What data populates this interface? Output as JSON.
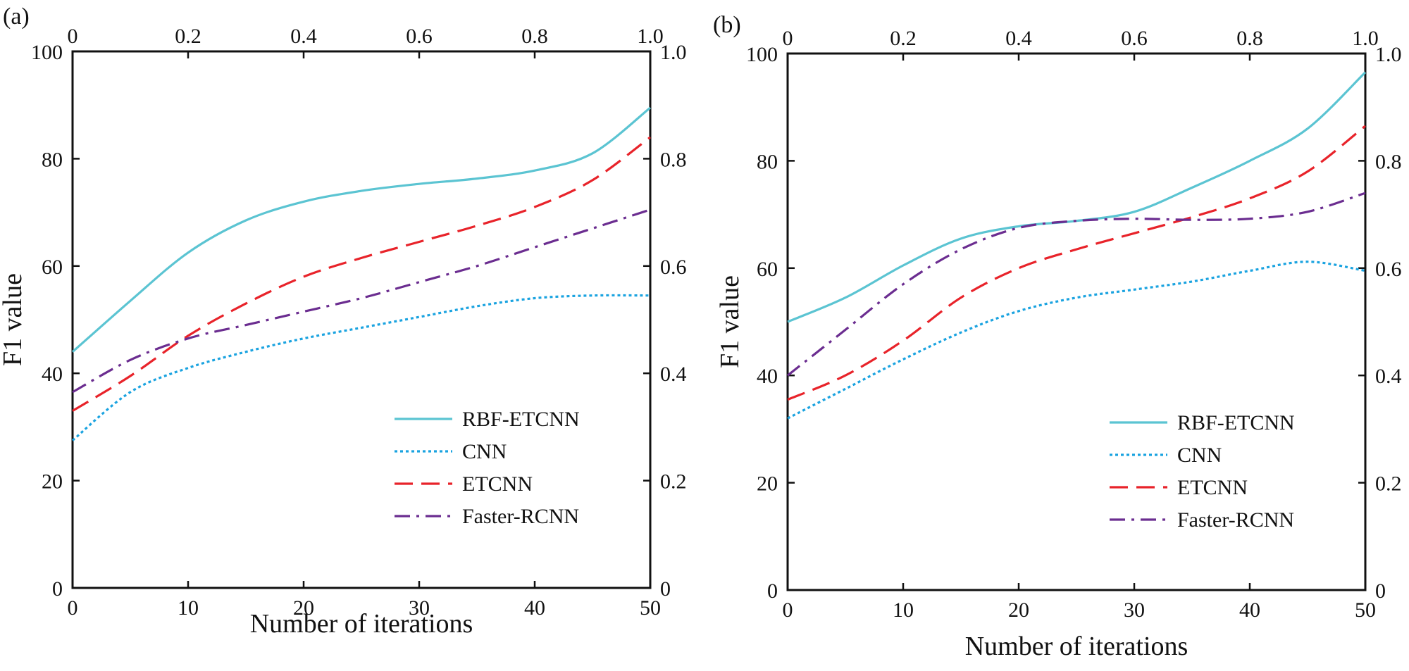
{
  "figure": {
    "panels": [
      "(a)",
      "(b)"
    ]
  },
  "chart_data": [
    {
      "type": "line",
      "panel": "(a)",
      "title": "",
      "xlabel": "Number of iterations",
      "ylabel": "F1 value",
      "xlim": [
        0,
        50
      ],
      "ylim": [
        0,
        100
      ],
      "x_ticks": [
        0,
        10,
        20,
        30,
        40,
        50
      ],
      "y_ticks": [
        0,
        20,
        40,
        60,
        80,
        100
      ],
      "top_axis_ticks": [
        "0",
        "0.2",
        "0.4",
        "0.6",
        "0.8",
        "1.0"
      ],
      "right_axis_ticks": [
        "0",
        "0.2",
        "0.4",
        "0.6",
        "0.8",
        "1.0"
      ],
      "legend_position": "bottom-right",
      "grid": false,
      "x": [
        0,
        5,
        10,
        15,
        20,
        25,
        30,
        35,
        40,
        45,
        50
      ],
      "series": [
        {
          "name": "RBF-ETCNN",
          "color": "#5bc4d2",
          "style": "solid",
          "values": [
            44,
            53.5,
            62.5,
            68.5,
            72,
            74,
            75.3,
            76.3,
            77.8,
            81,
            89.5
          ]
        },
        {
          "name": "CNN",
          "color": "#1aa3e0",
          "style": "dotted",
          "values": [
            27.5,
            36.5,
            41,
            44,
            46.5,
            48.5,
            50.5,
            52.5,
            54,
            54.5,
            54.5
          ]
        },
        {
          "name": "ETCNN",
          "color": "#e8232a",
          "style": "dashed",
          "values": [
            33,
            39.5,
            47,
            53,
            58,
            61.5,
            64.5,
            67.5,
            71,
            76,
            84
          ]
        },
        {
          "name": "Faster-RCNN",
          "color": "#6b2d90",
          "style": "dashdot",
          "values": [
            36.5,
            42.5,
            46.5,
            49,
            51.5,
            54,
            57,
            60,
            63.5,
            67,
            70.5
          ]
        }
      ]
    },
    {
      "type": "line",
      "panel": "(b)",
      "title": "",
      "xlabel": "Number of iterations",
      "ylabel": "F1 value",
      "xlim": [
        0,
        50
      ],
      "ylim": [
        0,
        100
      ],
      "x_ticks": [
        0,
        10,
        20,
        30,
        40,
        50
      ],
      "y_ticks": [
        0,
        20,
        40,
        60,
        80,
        100
      ],
      "top_axis_ticks": [
        "0",
        "0.2",
        "0.4",
        "0.6",
        "0.8",
        "1.0"
      ],
      "right_axis_ticks": [
        "0",
        "0.2",
        "0.4",
        "0.6",
        "0.8",
        "1.0"
      ],
      "legend_position": "bottom-right",
      "grid": false,
      "x": [
        0,
        5,
        10,
        15,
        20,
        25,
        30,
        35,
        40,
        45,
        50
      ],
      "series": [
        {
          "name": "RBF-ETCNN",
          "color": "#5bc4d2",
          "style": "solid",
          "values": [
            50,
            54.5,
            60.5,
            65.5,
            67.8,
            68.8,
            70.5,
            75,
            80,
            86,
            96.5
          ]
        },
        {
          "name": "CNN",
          "color": "#1aa3e0",
          "style": "dotted",
          "values": [
            32,
            37.5,
            43,
            48,
            52,
            54.5,
            56,
            57.5,
            59.5,
            61.2,
            59.5
          ]
        },
        {
          "name": "ETCNN",
          "color": "#e8232a",
          "style": "dashed",
          "values": [
            35.5,
            40,
            46.5,
            54.5,
            60,
            63.5,
            66.5,
            69.5,
            73,
            78,
            86.5
          ]
        },
        {
          "name": "Faster-RCNN",
          "color": "#6b2d90",
          "style": "dashdot",
          "values": [
            40,
            48.5,
            57,
            63.5,
            67.5,
            68.8,
            69.2,
            69,
            69.2,
            70.5,
            74
          ]
        }
      ]
    }
  ]
}
